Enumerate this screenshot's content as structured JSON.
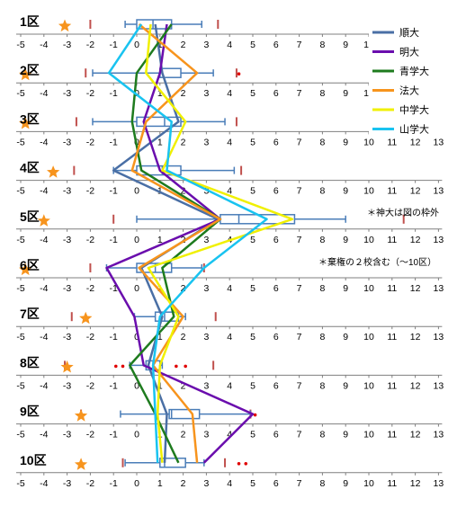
{
  "chart_data": {
    "type": "line",
    "x_range": [
      -5,
      13
    ],
    "x_ticks": [
      -5,
      -4,
      -3,
      -2,
      -1,
      0,
      1,
      2,
      3,
      4,
      5,
      6,
      7,
      8,
      9,
      10,
      11,
      12,
      13
    ],
    "grid": false,
    "legend_position": "top-right",
    "categories": [
      "1区",
      "2区",
      "3区",
      "4区",
      "5区",
      "6区",
      "7区",
      "8区",
      "9区",
      "10区"
    ],
    "series": [
      {
        "name": "順大",
        "color": "#4a6fa5",
        "values": [
          0.8,
          1.1,
          1.8,
          -1.0,
          3.5,
          0.2,
          1.1,
          0.5,
          1.3,
          1.2
        ]
      },
      {
        "name": "明大",
        "color": "#6a0dad",
        "values": [
          1.3,
          1.0,
          0.3,
          1.0,
          3.6,
          -1.3,
          -0.1,
          0.3,
          5.0,
          2.9
        ]
      },
      {
        "name": "青学大",
        "color": "#1e7b1e",
        "values": [
          1.5,
          0.0,
          -0.2,
          0.2,
          3.6,
          1.1,
          1.6,
          -0.3,
          0.8,
          1.8
        ]
      },
      {
        "name": "法大",
        "color": "#f7941d",
        "values": [
          0.1,
          2.6,
          0.4,
          -0.2,
          3.6,
          0.1,
          2.0,
          0.7,
          2.4,
          2.6
        ]
      },
      {
        "name": "中学大",
        "color": "#f0f000",
        "values": [
          0.6,
          0.4,
          2.1,
          1.1,
          6.7,
          0.5,
          1.8,
          1.0,
          0.9,
          1.1
        ]
      },
      {
        "name": "山学大",
        "color": "#19c3f0",
        "values": [
          0.2,
          -1.2,
          1.5,
          1.3,
          5.6,
          2.9,
          1.0,
          0.7,
          0.8,
          0.9
        ]
      }
    ],
    "boxplots": [
      {
        "category": "1区",
        "whisker_low": -0.5,
        "q1": 0.0,
        "median": 0.7,
        "q3": 1.5,
        "whisker_high": 2.8,
        "outliers": []
      },
      {
        "category": "2区",
        "whisker_low": -1.9,
        "q1": 1.0,
        "median": 1.0,
        "q3": 1.9,
        "whisker_high": 3.3,
        "outliers": [
          4.4
        ]
      },
      {
        "category": "3区",
        "whisker_low": -1.9,
        "q1": 0.0,
        "median": 1.2,
        "q3": 1.9,
        "whisker_high": 3.8,
        "outliers": []
      },
      {
        "category": "4区",
        "whisker_low": -1.0,
        "q1": 0.0,
        "median": 1.1,
        "q3": 1.9,
        "whisker_high": 4.2,
        "outliers": []
      },
      {
        "category": "5区",
        "whisker_low": 0.0,
        "q1": 3.6,
        "median": 4.4,
        "q3": 6.8,
        "whisker_high": 9.0,
        "outliers": []
      },
      {
        "category": "6区",
        "whisker_low": -1.3,
        "q1": 0.0,
        "median": 0.8,
        "q3": 1.5,
        "whisker_high": 2.8,
        "outliers": []
      },
      {
        "category": "7区",
        "whisker_low": -0.1,
        "q1": 0.8,
        "median": 1.2,
        "q3": 1.8,
        "whisker_high": 2.1,
        "outliers": []
      },
      {
        "category": "8区",
        "whisker_low": -0.3,
        "q1": 0.4,
        "median": 0.7,
        "q3": 1.0,
        "whisker_high": 1.1,
        "outliers": [
          -0.9,
          -0.6,
          1.7,
          2.1
        ]
      },
      {
        "category": "9区",
        "whisker_low": -0.7,
        "q1": 1.4,
        "median": 1.5,
        "q3": 2.7,
        "whisker_high": 4.9,
        "outliers": [
          5.1
        ]
      },
      {
        "category": "10区",
        "whisker_low": -0.5,
        "q1": 1.0,
        "median": 1.2,
        "q3": 2.1,
        "whisker_high": 2.9,
        "outliers": [
          4.4,
          4.7
        ]
      }
    ],
    "ticks_marks": [
      {
        "category": "1区",
        "left": -2.0,
        "right": 3.5
      },
      {
        "category": "2区",
        "left": -2.2,
        "right": 4.3
      },
      {
        "category": "3区",
        "left": -2.6,
        "right": 4.3
      },
      {
        "category": "4区",
        "left": -2.7,
        "right": 4.5
      },
      {
        "category": "5区",
        "left": -1.0,
        "right": 11.5
      },
      {
        "category": "6区",
        "left": -2.0,
        "right": 2.9
      },
      {
        "category": "7区",
        "left": -2.8,
        "right": 3.4
      },
      {
        "category": "8区",
        "left": -3.1,
        "right": 3.3
      },
      {
        "category": "9区",
        "left": -2.4,
        "right": 4.9
      },
      {
        "category": "10区",
        "left": -0.6,
        "right": 3.8
      }
    ],
    "stars": [
      -3.1,
      -4.8,
      -4.8,
      -3.6,
      -4.0,
      -4.8,
      -2.2,
      -3.0,
      -2.4,
      -2.4
    ],
    "annotations": [
      "＊神大は図の枠外",
      "＊棄権の２校含む（〜10区）"
    ]
  }
}
